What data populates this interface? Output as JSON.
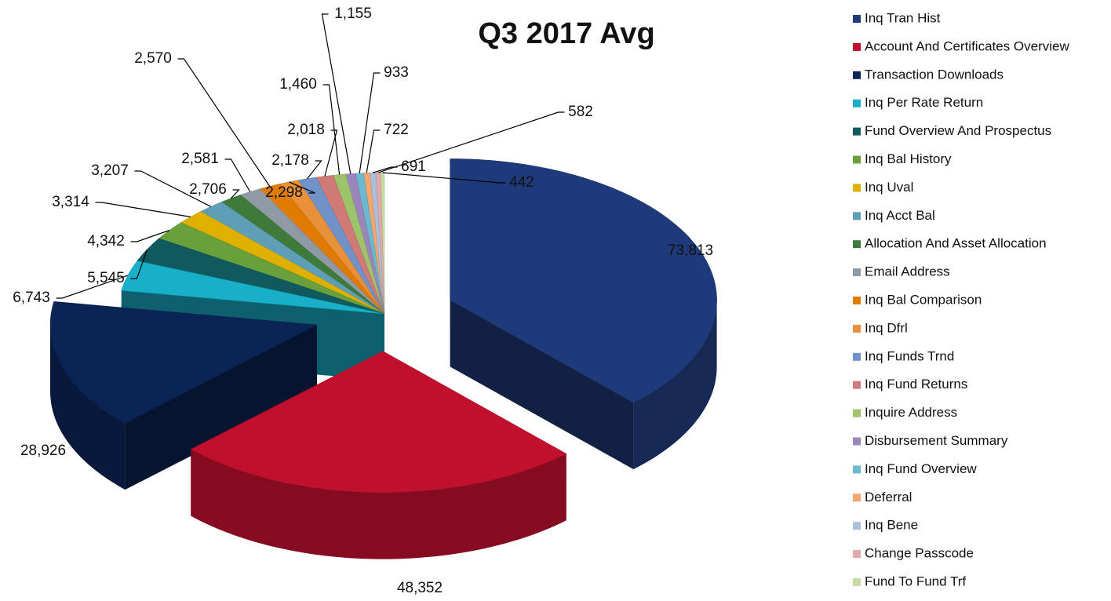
{
  "chart_data": {
    "type": "pie",
    "title": "Q3 2017 Avg",
    "categories": [
      "Inq Tran Hist",
      "Account And Certificates Overview",
      "Transaction Downloads",
      "Inq Per Rate Return",
      "Fund Overview And Prospectus",
      "Inq Bal History",
      "Inq Uval",
      "Inq Acct Bal",
      "Allocation And Asset Allocation",
      "Email Address",
      "Inq Bal Comparison",
      "Inq Dfrl",
      "Inq Funds Trnd",
      "Inq Fund Returns",
      "Inquire Address",
      "Disbursement Summary",
      "Inq Fund Overview",
      "Deferral",
      "Inq Bene",
      "Change Passcode",
      "Fund To Fund Trf"
    ],
    "values": [
      73813,
      48352,
      28926,
      6743,
      5545,
      4342,
      3314,
      3207,
      2706,
      2581,
      2570,
      2298,
      2178,
      2018,
      1460,
      1155,
      933,
      722,
      691,
      582,
      442
    ],
    "value_labels": [
      "73,813",
      "48,352",
      "28,926",
      "6,743",
      "5,545",
      "4,342",
      "3,314",
      "3,207",
      "2,706",
      "2,581",
      "2,570",
      "2,298",
      "2,178",
      "2,018",
      "1,460",
      "1,155",
      "933",
      "722",
      "691",
      "582",
      "442"
    ],
    "colors": [
      "#1f3a7a",
      "#c0102e",
      "#0b2456",
      "#17b0c8",
      "#0e5a5e",
      "#6aa03c",
      "#e0b000",
      "#5f9fb5",
      "#3e7a3a",
      "#909aa5",
      "#e07b00",
      "#e8913a",
      "#7092c8",
      "#d07a78",
      "#9dc46a",
      "#9b86bb",
      "#6bb9d0",
      "#f3a66e",
      "#a9bfdc",
      "#e3a9a8",
      "#c6dca4"
    ],
    "legend": "right"
  }
}
